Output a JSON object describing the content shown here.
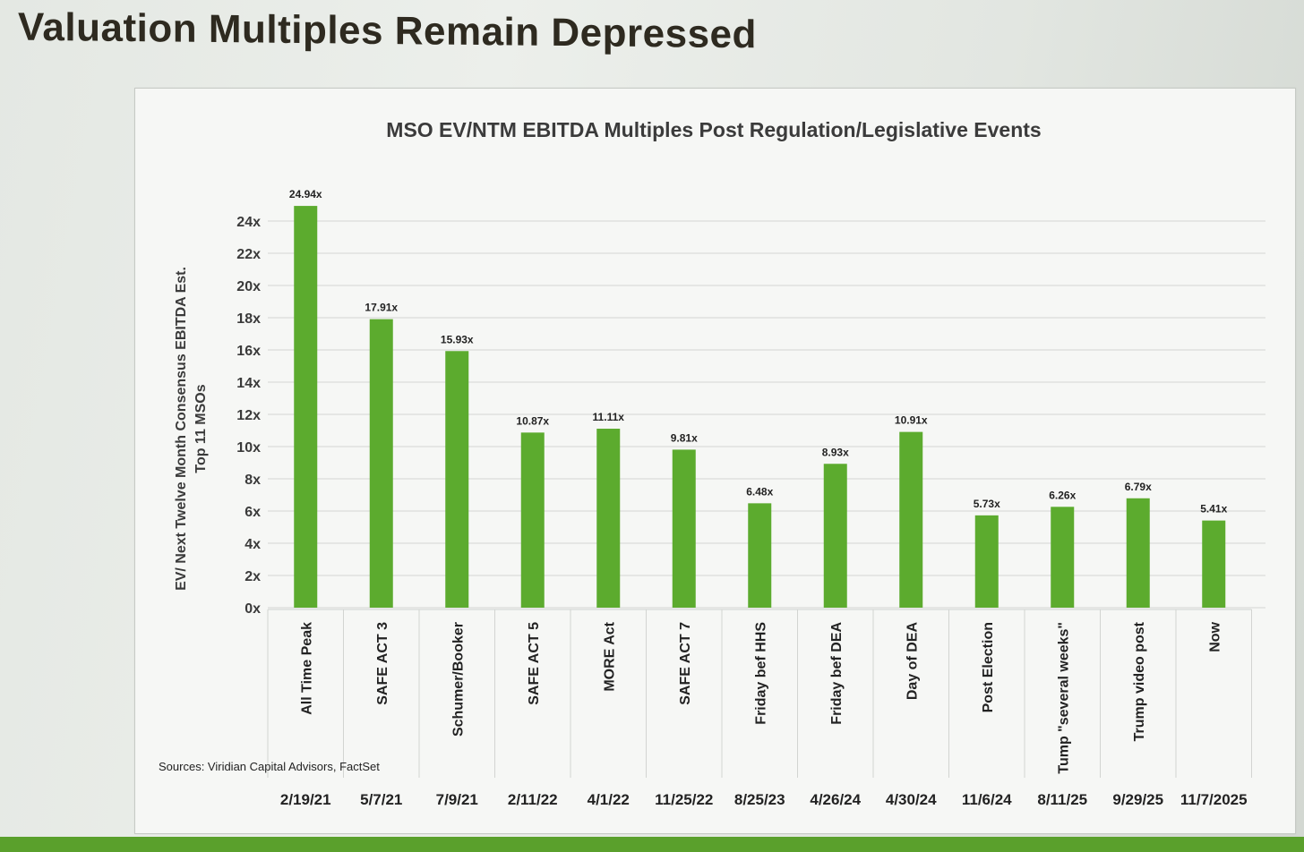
{
  "slide": {
    "title": "Valuation Multiples Remain Depressed",
    "colors": {
      "accent": "#5aa02c",
      "bar": "#5cab2e",
      "title": "#2e2a20"
    }
  },
  "chart_data": {
    "type": "bar",
    "title": "MSO EV/NTM EBITDA Multiples Post Regulation/Legislative Events",
    "ylabel": [
      "EV/ Next Twelve Month Consensus EBITDA Est.",
      "Top 11 MSOs"
    ],
    "xlabel": "",
    "ylim": [
      0,
      24
    ],
    "yticks": [
      "0x",
      "2x",
      "4x",
      "6x",
      "8x",
      "10x",
      "12x",
      "14x",
      "16x",
      "18x",
      "20x",
      "22x",
      "24x"
    ],
    "grid": true,
    "legend": "none",
    "categories": [
      "All Time Peak",
      "SAFE ACT 3",
      "Schumer/Booker",
      "SAFE ACT 5",
      "MORE Act",
      "SAFE ACT 7",
      "Friday bef HHS",
      "Friday bef DEA",
      "Day of DEA",
      "Post Election",
      "Tump \"several weeks\"",
      "Trump video post",
      "Now"
    ],
    "dates": [
      "2/19/21",
      "5/7/21",
      "7/9/21",
      "2/11/22",
      "4/1/22",
      "11/25/22",
      "8/25/23",
      "4/26/24",
      "4/30/24",
      "11/6/24",
      "8/11/25",
      "9/29/25",
      "11/7/2025"
    ],
    "values": [
      24.94,
      17.91,
      15.93,
      10.87,
      11.11,
      9.81,
      6.48,
      8.93,
      10.91,
      5.73,
      6.26,
      6.79,
      5.41
    ],
    "labels": [
      "24.94x",
      "17.91x",
      "15.93x",
      "10.87x",
      "11.11x",
      "9.81x",
      "6.48x",
      "8.93x",
      "10.91x",
      "5.73x",
      "6.26x",
      "6.79x",
      "5.41x"
    ],
    "source": "Sources: Viridian Capital Advisors, FactSet"
  }
}
